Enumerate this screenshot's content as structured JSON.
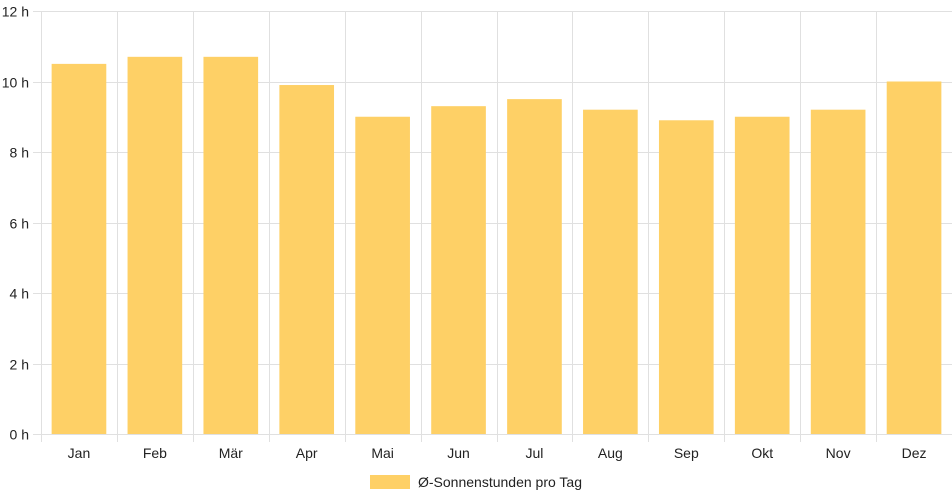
{
  "chart_data": {
    "type": "bar",
    "categories": [
      "Jan",
      "Feb",
      "Mär",
      "Apr",
      "Mai",
      "Jun",
      "Jul",
      "Aug",
      "Sep",
      "Okt",
      "Nov",
      "Dez"
    ],
    "series": [
      {
        "name": "Ø-Sonnenstunden pro Tag",
        "values": [
          10.5,
          10.7,
          10.7,
          9.9,
          9.0,
          9.3,
          9.5,
          9.2,
          8.9,
          9.0,
          9.2,
          10.0
        ]
      }
    ],
    "ylim": [
      0,
      12
    ],
    "yticks": [
      0,
      2,
      4,
      6,
      8,
      10,
      12
    ],
    "ytick_labels": [
      "0 h",
      "2 h",
      "4 h",
      "6 h",
      "8 h",
      "10 h",
      "12 h"
    ],
    "grid": true,
    "legend_position": "bottom",
    "colors": {
      "bar": "#fed066",
      "grid": "#e0e0e0",
      "text": "#222222"
    }
  }
}
